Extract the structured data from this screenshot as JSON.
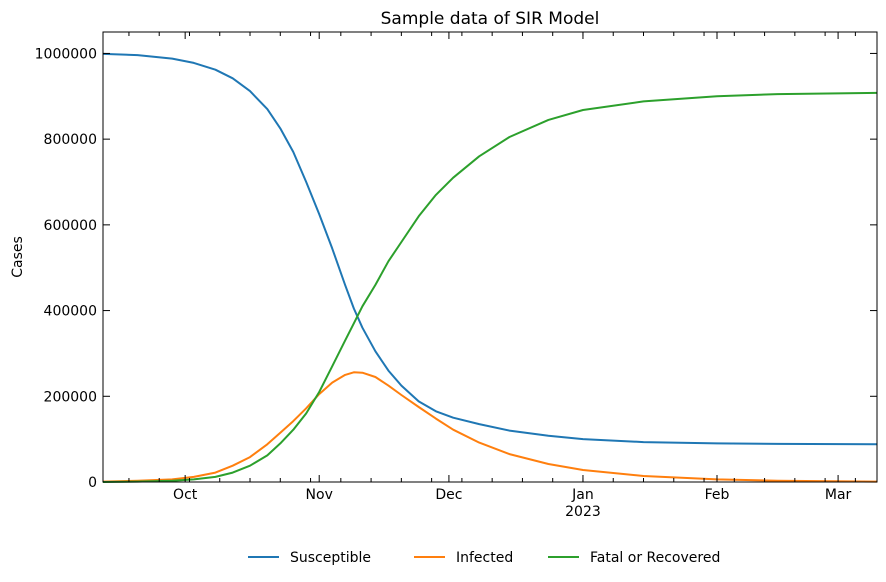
{
  "chart_data": {
    "type": "line",
    "title": "Sample data of SIR Model",
    "xlabel": "",
    "ylabel": "Cases",
    "x_range": [
      "2022-09-12",
      "2023-03-10"
    ],
    "ylim": [
      0,
      1050000
    ],
    "x_ticks": [
      {
        "date": "2022-10-01",
        "label": "Oct",
        "sublabel": ""
      },
      {
        "date": "2022-11-01",
        "label": "Nov",
        "sublabel": ""
      },
      {
        "date": "2022-12-01",
        "label": "Dec",
        "sublabel": ""
      },
      {
        "date": "2023-01-01",
        "label": "Jan",
        "sublabel": "2023"
      },
      {
        "date": "2023-02-01",
        "label": "Feb",
        "sublabel": ""
      },
      {
        "date": "2023-03-01",
        "label": "Mar",
        "sublabel": ""
      }
    ],
    "x_minor_ticks": [
      "2022-09-18",
      "2022-09-25",
      "2022-10-02",
      "2022-10-09",
      "2022-10-16",
      "2022-10-23",
      "2022-10-30",
      "2022-11-06",
      "2022-11-13",
      "2022-11-20",
      "2022-11-27",
      "2022-12-04",
      "2022-12-11",
      "2022-12-18",
      "2022-12-25",
      "2023-01-01",
      "2023-01-08",
      "2023-01-15",
      "2023-01-22",
      "2023-01-29",
      "2023-02-05",
      "2023-02-12",
      "2023-02-19",
      "2023-02-26",
      "2023-03-05"
    ],
    "y_ticks": [
      {
        "value": 0,
        "label": "0"
      },
      {
        "value": 200000,
        "label": "200000"
      },
      {
        "value": 400000,
        "label": "400000"
      },
      {
        "value": 600000,
        "label": "600000"
      },
      {
        "value": 800000,
        "label": "800000"
      },
      {
        "value": 1000000,
        "label": "1000000"
      }
    ],
    "legend": {
      "position": "bottom-center",
      "entries": [
        "Susceptible",
        "Infected",
        "Fatal or Recovered"
      ]
    },
    "grid": false,
    "series": [
      {
        "name": "Susceptible",
        "color": "#1f77b4",
        "points": [
          [
            "2022-09-12",
            999000
          ],
          [
            "2022-09-20",
            996000
          ],
          [
            "2022-09-28",
            988000
          ],
          [
            "2022-10-03",
            978000
          ],
          [
            "2022-10-08",
            962000
          ],
          [
            "2022-10-12",
            942000
          ],
          [
            "2022-10-16",
            912000
          ],
          [
            "2022-10-20",
            870000
          ],
          [
            "2022-10-23",
            825000
          ],
          [
            "2022-10-26",
            770000
          ],
          [
            "2022-10-29",
            700000
          ],
          [
            "2022-11-01",
            625000
          ],
          [
            "2022-11-04",
            545000
          ],
          [
            "2022-11-07",
            460000
          ],
          [
            "2022-11-09",
            405000
          ],
          [
            "2022-11-11",
            360000
          ],
          [
            "2022-11-14",
            305000
          ],
          [
            "2022-11-17",
            260000
          ],
          [
            "2022-11-20",
            225000
          ],
          [
            "2022-11-24",
            188000
          ],
          [
            "2022-11-28",
            165000
          ],
          [
            "2022-12-02",
            150000
          ],
          [
            "2022-12-08",
            135000
          ],
          [
            "2022-12-15",
            120000
          ],
          [
            "2022-12-24",
            108000
          ],
          [
            "2023-01-01",
            100000
          ],
          [
            "2023-01-15",
            93000
          ],
          [
            "2023-02-01",
            90000
          ],
          [
            "2023-02-15",
            89000
          ],
          [
            "2023-03-10",
            88000
          ]
        ]
      },
      {
        "name": "Infected",
        "color": "#ff7f0e",
        "points": [
          [
            "2022-09-12",
            1000
          ],
          [
            "2022-09-20",
            3000
          ],
          [
            "2022-09-28",
            6000
          ],
          [
            "2022-10-03",
            12000
          ],
          [
            "2022-10-08",
            22000
          ],
          [
            "2022-10-12",
            38000
          ],
          [
            "2022-10-16",
            58000
          ],
          [
            "2022-10-20",
            88000
          ],
          [
            "2022-10-23",
            115000
          ],
          [
            "2022-10-26",
            142000
          ],
          [
            "2022-10-29",
            172000
          ],
          [
            "2022-11-01",
            205000
          ],
          [
            "2022-11-04",
            232000
          ],
          [
            "2022-11-07",
            250000
          ],
          [
            "2022-11-09",
            256000
          ],
          [
            "2022-11-11",
            255000
          ],
          [
            "2022-11-14",
            245000
          ],
          [
            "2022-11-17",
            225000
          ],
          [
            "2022-11-20",
            203000
          ],
          [
            "2022-11-24",
            175000
          ],
          [
            "2022-11-28",
            148000
          ],
          [
            "2022-12-02",
            122000
          ],
          [
            "2022-12-08",
            92000
          ],
          [
            "2022-12-15",
            65000
          ],
          [
            "2022-12-24",
            42000
          ],
          [
            "2023-01-01",
            28000
          ],
          [
            "2023-01-15",
            14000
          ],
          [
            "2023-02-01",
            6000
          ],
          [
            "2023-02-15",
            3000
          ],
          [
            "2023-03-10",
            1000
          ]
        ]
      },
      {
        "name": "Fatal or Recovered",
        "color": "#2ca02c",
        "points": [
          [
            "2022-09-12",
            0
          ],
          [
            "2022-09-20",
            1000
          ],
          [
            "2022-09-28",
            3000
          ],
          [
            "2022-10-03",
            6000
          ],
          [
            "2022-10-08",
            12000
          ],
          [
            "2022-10-12",
            22000
          ],
          [
            "2022-10-16",
            38000
          ],
          [
            "2022-10-20",
            62000
          ],
          [
            "2022-10-23",
            90000
          ],
          [
            "2022-10-26",
            122000
          ],
          [
            "2022-10-29",
            160000
          ],
          [
            "2022-11-01",
            210000
          ],
          [
            "2022-11-04",
            270000
          ],
          [
            "2022-11-07",
            330000
          ],
          [
            "2022-11-09",
            370000
          ],
          [
            "2022-11-11",
            410000
          ],
          [
            "2022-11-14",
            460000
          ],
          [
            "2022-11-17",
            515000
          ],
          [
            "2022-11-20",
            560000
          ],
          [
            "2022-11-24",
            620000
          ],
          [
            "2022-11-28",
            670000
          ],
          [
            "2022-12-02",
            710000
          ],
          [
            "2022-12-08",
            760000
          ],
          [
            "2022-12-15",
            805000
          ],
          [
            "2022-12-24",
            845000
          ],
          [
            "2023-01-01",
            868000
          ],
          [
            "2023-01-15",
            888000
          ],
          [
            "2023-02-01",
            900000
          ],
          [
            "2023-02-15",
            905000
          ],
          [
            "2023-03-10",
            908000
          ]
        ]
      }
    ]
  }
}
